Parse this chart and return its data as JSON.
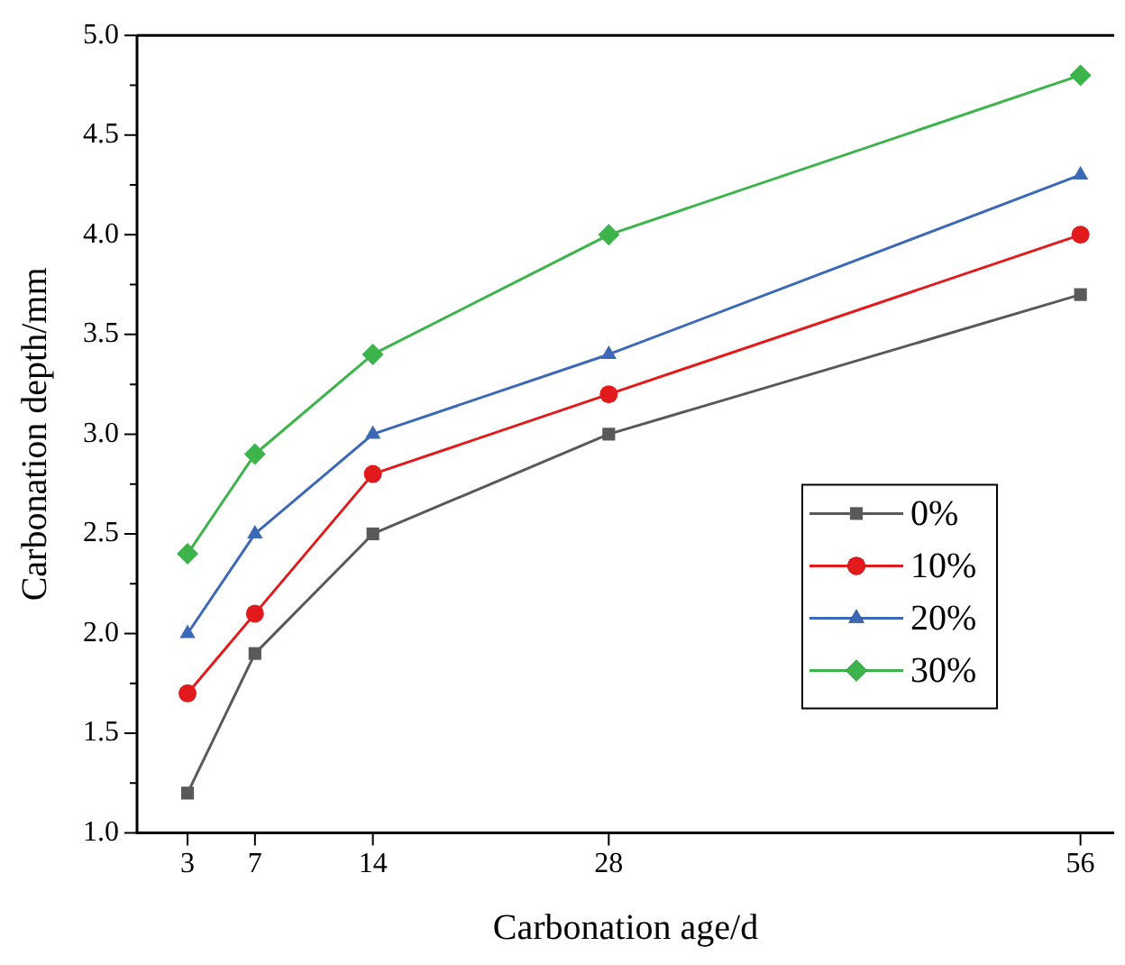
{
  "chart_data": {
    "type": "line",
    "xlabel": "Carbonation age/d",
    "ylabel": "Carbonation depth/mm",
    "x": [
      3,
      7,
      14,
      28,
      56
    ],
    "xlim": [
      0,
      58
    ],
    "xticks": [
      3,
      7,
      14,
      28,
      56
    ],
    "ylim": [
      1,
      5
    ],
    "yticks": [
      {
        "value": 1,
        "label": "1.0"
      },
      {
        "value": 1.25,
        "label": null
      },
      {
        "value": 1.5,
        "label": "1.5"
      },
      {
        "value": 1.75,
        "label": null
      },
      {
        "value": 2,
        "label": "2.0"
      },
      {
        "value": 2.25,
        "label": null
      },
      {
        "value": 2.5,
        "label": "2.5"
      },
      {
        "value": 2.75,
        "label": null
      },
      {
        "value": 3,
        "label": "3.0"
      },
      {
        "value": 3.25,
        "label": null
      },
      {
        "value": 3.5,
        "label": "3.5"
      },
      {
        "value": 3.75,
        "label": null
      },
      {
        "value": 4,
        "label": "4.0"
      },
      {
        "value": 4.25,
        "label": null
      },
      {
        "value": 4.5,
        "label": "4.5"
      },
      {
        "value": 4.75,
        "label": null
      },
      {
        "value": 5,
        "label": "5.0"
      }
    ],
    "grid": false,
    "legend": "right",
    "line_style": "solid",
    "series": [
      {
        "name": "0%",
        "color": "#595959",
        "marker": "square",
        "values": [
          1.2,
          1.9,
          2.5,
          3.0,
          3.7
        ]
      },
      {
        "name": "10%",
        "color": "#e31a1c",
        "marker": "circle",
        "values": [
          1.7,
          2.1,
          2.8,
          3.2,
          4.0
        ]
      },
      {
        "name": "20%",
        "color": "#3c68b8",
        "marker": "triangle",
        "values": [
          2.0,
          2.5,
          3.0,
          3.4,
          4.3
        ]
      },
      {
        "name": "30%",
        "color": "#3cb44b",
        "marker": "diamond",
        "values": [
          2.4,
          2.9,
          3.4,
          4.0,
          4.8
        ]
      }
    ]
  }
}
